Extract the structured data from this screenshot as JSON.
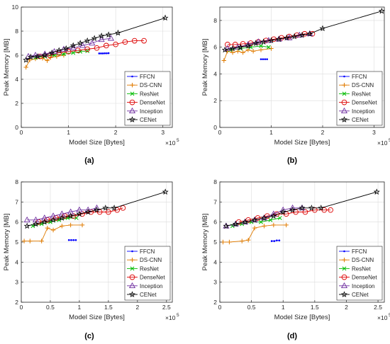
{
  "chart_data": [
    {
      "panel_label": "(a)",
      "type": "line",
      "xlabel": "Model Size [Bytes]",
      "ylabel": "Peak Memory [MB]",
      "x_multiplier_base": "×10",
      "x_multiplier_exp": "5",
      "xlim": [
        0,
        3.2
      ],
      "ylim": [
        0,
        10
      ],
      "xticks": [
        0,
        1,
        2,
        3
      ],
      "yticks": [
        0,
        2,
        4,
        6,
        8,
        10
      ],
      "grid": true,
      "legend_position": "bottom-right",
      "series": [
        {
          "name": "FFCN",
          "color": "#0000ff",
          "marker": "dot",
          "x": [
            1.65,
            1.69,
            1.73,
            1.77,
            1.81,
            1.85
          ],
          "y": [
            6.15,
            6.15,
            6.15,
            6.16,
            6.16,
            6.17
          ]
        },
        {
          "name": "DS-CNN",
          "color": "#e07b00",
          "marker": "plus",
          "x": [
            0.1,
            0.18,
            0.3,
            0.45,
            0.55,
            0.62,
            0.75,
            0.9
          ],
          "y": [
            5.0,
            5.6,
            5.7,
            5.75,
            5.55,
            5.8,
            5.9,
            6.0
          ]
        },
        {
          "name": "ResNet",
          "color": "#00bb00",
          "marker": "x",
          "x": [
            0.3,
            0.5,
            0.7,
            0.9,
            1.1,
            1.25,
            1.4
          ],
          "y": [
            5.8,
            5.9,
            6.0,
            6.1,
            6.2,
            6.3,
            6.35
          ]
        },
        {
          "name": "DenseNet",
          "color": "#dd0000",
          "marker": "circle",
          "x": [
            0.4,
            0.6,
            0.8,
            1.0,
            1.2,
            1.4,
            1.6,
            1.8,
            2.0,
            2.2,
            2.4,
            2.6
          ],
          "y": [
            5.9,
            6.0,
            6.2,
            6.3,
            6.4,
            6.5,
            6.6,
            6.8,
            6.9,
            7.1,
            7.2,
            7.2
          ]
        },
        {
          "name": "Inception",
          "color": "#7030a0",
          "marker": "triangle",
          "x": [
            0.15,
            0.3,
            0.5,
            0.7,
            0.9,
            1.1,
            1.3,
            1.5,
            1.7,
            1.9
          ],
          "y": [
            5.9,
            6.0,
            6.1,
            6.3,
            6.5,
            6.6,
            6.8,
            7.0,
            7.3,
            7.4
          ]
        },
        {
          "name": "CENet",
          "color": "#000000",
          "marker": "star",
          "x": [
            0.1,
            0.2,
            0.35,
            0.5,
            0.65,
            0.8,
            0.95,
            1.1,
            1.25,
            1.4,
            1.55,
            1.7,
            1.85,
            2.05,
            3.05
          ],
          "y": [
            5.6,
            5.85,
            5.9,
            6.0,
            6.2,
            6.4,
            6.55,
            6.8,
            7.0,
            7.2,
            7.4,
            7.6,
            7.7,
            7.85,
            9.1
          ]
        }
      ]
    },
    {
      "panel_label": "(b)",
      "type": "line",
      "xlabel": "Model Size [Bytes]",
      "ylabel": "Peak Memory [MB]",
      "x_multiplier_base": "×10",
      "x_multiplier_exp": "5",
      "xlim": [
        0,
        3.2
      ],
      "ylim": [
        0,
        9
      ],
      "xticks": [
        0,
        1,
        2,
        3
      ],
      "yticks": [
        0,
        2,
        4,
        6,
        8
      ],
      "grid": true,
      "legend_position": "bottom-right",
      "series": [
        {
          "name": "FFCN",
          "color": "#0000ff",
          "marker": "dot",
          "x": [
            0.8,
            0.84,
            0.88,
            0.92
          ],
          "y": [
            5.1,
            5.1,
            5.1,
            5.1
          ]
        },
        {
          "name": "DS-CNN",
          "color": "#e07b00",
          "marker": "plus",
          "x": [
            0.08,
            0.15,
            0.25,
            0.35,
            0.45,
            0.55,
            0.65,
            0.8,
            1.0
          ],
          "y": [
            5.0,
            5.7,
            5.6,
            5.7,
            5.6,
            5.8,
            5.7,
            5.8,
            5.9
          ]
        },
        {
          "name": "ResNet",
          "color": "#00bb00",
          "marker": "x",
          "x": [
            0.2,
            0.4,
            0.6,
            0.8,
            0.95
          ],
          "y": [
            5.8,
            5.9,
            6.0,
            6.1,
            6.0
          ]
        },
        {
          "name": "DenseNet",
          "color": "#dd0000",
          "marker": "circle",
          "x": [
            0.15,
            0.3,
            0.45,
            0.6,
            0.75,
            0.9,
            1.05,
            1.2,
            1.35,
            1.5,
            1.65,
            1.8
          ],
          "y": [
            6.2,
            6.2,
            6.25,
            6.3,
            6.4,
            6.5,
            6.6,
            6.7,
            6.8,
            6.9,
            7.0,
            7.0
          ]
        },
        {
          "name": "Inception",
          "color": "#7030a0",
          "marker": "triangle",
          "x": [
            0.15,
            0.35,
            0.55,
            0.75,
            0.95,
            1.15,
            1.35,
            1.55,
            1.75
          ],
          "y": [
            5.9,
            6.0,
            6.2,
            6.4,
            6.5,
            6.6,
            6.7,
            6.9,
            7.0
          ]
        },
        {
          "name": "CENet",
          "color": "#000000",
          "marker": "star",
          "x": [
            0.1,
            0.25,
            0.4,
            0.55,
            0.7,
            0.85,
            1.0,
            1.15,
            1.3,
            1.45,
            1.6,
            1.75,
            2.0,
            3.15
          ],
          "y": [
            5.8,
            5.9,
            6.0,
            6.1,
            6.3,
            6.4,
            6.5,
            6.6,
            6.7,
            6.8,
            6.9,
            7.0,
            7.4,
            8.7
          ]
        }
      ]
    },
    {
      "panel_label": "(c)",
      "type": "line",
      "xlabel": "Model Size [Bytes]",
      "ylabel": "Peak Memory [MB]",
      "x_multiplier_base": "×10",
      "x_multiplier_exp": "5",
      "xlim": [
        0,
        2.6
      ],
      "ylim": [
        2,
        8
      ],
      "xticks": [
        0,
        0.5,
        1,
        1.5,
        2,
        2.5
      ],
      "yticks": [
        2,
        3,
        4,
        5,
        6,
        7,
        8
      ],
      "grid": true,
      "legend_position": "bottom-right",
      "series": [
        {
          "name": "FFCN",
          "color": "#0000ff",
          "marker": "dot",
          "x": [
            0.82,
            0.86,
            0.9,
            0.94
          ],
          "y": [
            5.1,
            5.1,
            5.1,
            5.1
          ]
        },
        {
          "name": "DS-CNN",
          "color": "#e07b00",
          "marker": "plus",
          "x": [
            0.05,
            0.15,
            0.35,
            0.45,
            0.55,
            0.7,
            0.85,
            1.05
          ],
          "y": [
            5.05,
            5.05,
            5.05,
            5.7,
            5.6,
            5.8,
            5.85,
            5.85
          ]
        },
        {
          "name": "ResNet",
          "color": "#00bb00",
          "marker": "x",
          "x": [
            0.2,
            0.35,
            0.5,
            0.65,
            0.8,
            0.95
          ],
          "y": [
            5.8,
            5.9,
            6.0,
            6.1,
            6.2,
            6.2
          ]
        },
        {
          "name": "DenseNet",
          "color": "#dd0000",
          "marker": "circle",
          "x": [
            0.3,
            0.45,
            0.6,
            0.75,
            0.9,
            1.05,
            1.2,
            1.35,
            1.5,
            1.65,
            1.75
          ],
          "y": [
            6.0,
            6.1,
            6.2,
            6.3,
            6.3,
            6.4,
            6.5,
            6.5,
            6.5,
            6.6,
            6.7
          ]
        },
        {
          "name": "Inception",
          "color": "#7030a0",
          "marker": "triangle",
          "x": [
            0.1,
            0.25,
            0.4,
            0.55,
            0.7,
            0.85,
            1.0,
            1.15,
            1.3
          ],
          "y": [
            6.1,
            6.1,
            6.2,
            6.3,
            6.4,
            6.5,
            6.6,
            6.6,
            6.7
          ]
        },
        {
          "name": "CENet",
          "color": "#000000",
          "marker": "star",
          "x": [
            0.1,
            0.25,
            0.4,
            0.55,
            0.7,
            0.85,
            1.0,
            1.15,
            1.3,
            1.45,
            1.6,
            2.48
          ],
          "y": [
            5.8,
            5.9,
            6.0,
            6.1,
            6.2,
            6.3,
            6.4,
            6.5,
            6.6,
            6.7,
            6.7,
            7.5
          ]
        }
      ]
    },
    {
      "panel_label": "(d)",
      "type": "line",
      "xlabel": "Model Size [Bytes]",
      "ylabel": "Peak Memory [MB]",
      "x_multiplier_base": "×10",
      "x_multiplier_exp": "5",
      "xlim": [
        0,
        2.6
      ],
      "ylim": [
        2,
        8
      ],
      "xticks": [
        0,
        0.5,
        1,
        1.5,
        2,
        2.5
      ],
      "yticks": [
        2,
        3,
        4,
        5,
        6,
        7,
        8
      ],
      "grid": true,
      "legend_position": "bottom-right",
      "series": [
        {
          "name": "FFCN",
          "color": "#0000ff",
          "marker": "dot",
          "x": [
            0.82,
            0.86,
            0.9,
            0.94
          ],
          "y": [
            5.05,
            5.05,
            5.08,
            5.08
          ]
        },
        {
          "name": "DS-CNN",
          "color": "#e07b00",
          "marker": "plus",
          "x": [
            0.05,
            0.15,
            0.35,
            0.45,
            0.55,
            0.7,
            0.85,
            1.05
          ],
          "y": [
            5.0,
            5.0,
            5.05,
            5.1,
            5.7,
            5.8,
            5.85,
            5.85
          ]
        },
        {
          "name": "ResNet",
          "color": "#00bb00",
          "marker": "x",
          "x": [
            0.2,
            0.35,
            0.5,
            0.65,
            0.8,
            0.95
          ],
          "y": [
            5.8,
            5.9,
            6.0,
            6.0,
            6.1,
            6.2
          ]
        },
        {
          "name": "DenseNet",
          "color": "#dd0000",
          "marker": "circle",
          "x": [
            0.3,
            0.45,
            0.6,
            0.75,
            0.9,
            1.05,
            1.2,
            1.35,
            1.5,
            1.65,
            1.75
          ],
          "y": [
            6.0,
            6.1,
            6.2,
            6.3,
            6.4,
            6.4,
            6.5,
            6.5,
            6.6,
            6.6,
            6.6
          ]
        },
        {
          "name": "Inception",
          "color": "#7030a0",
          "marker": "triangle",
          "x": [
            0.1,
            0.25,
            0.4,
            0.55,
            0.7,
            0.85,
            1.0,
            1.15,
            1.3
          ],
          "y": [
            5.8,
            5.9,
            6.0,
            6.1,
            6.2,
            6.4,
            6.6,
            6.7,
            6.7
          ]
        },
        {
          "name": "CENet",
          "color": "#000000",
          "marker": "star",
          "x": [
            0.1,
            0.25,
            0.4,
            0.55,
            0.7,
            0.85,
            1.0,
            1.15,
            1.3,
            1.45,
            1.6,
            2.48
          ],
          "y": [
            5.8,
            5.9,
            6.0,
            6.1,
            6.2,
            6.3,
            6.5,
            6.6,
            6.7,
            6.7,
            6.7,
            7.5
          ]
        }
      ]
    }
  ]
}
